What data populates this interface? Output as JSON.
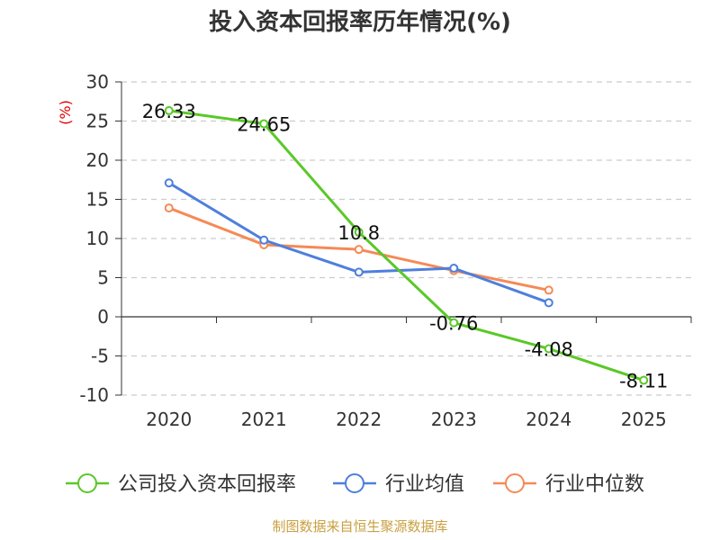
{
  "chart_data": {
    "type": "line",
    "title": "投入资本回报率历年情况(%)",
    "ylabel": "(%)",
    "categories": [
      "2020",
      "2021",
      "2022",
      "2023",
      "2024",
      "2025"
    ],
    "ylim": [
      -10,
      30
    ],
    "yticks": [
      30,
      25,
      20,
      15,
      10,
      5,
      0,
      -5,
      -10
    ],
    "grid": true,
    "legend_position": "bottom",
    "series": [
      {
        "name": "公司投入资本回报率",
        "color": "#5ac828",
        "values": [
          26.33,
          24.65,
          10.8,
          -0.76,
          -4.08,
          -8.11
        ],
        "labels": [
          "26.33",
          "24.65",
          "10.8",
          "-0.76",
          "-4.08",
          "-8.11"
        ]
      },
      {
        "name": "行业均值",
        "color": "#4e7fdc",
        "values": [
          17.1,
          9.8,
          5.7,
          6.2,
          1.8,
          null
        ]
      },
      {
        "name": "行业中位数",
        "color": "#f58a55",
        "values": [
          13.9,
          9.2,
          8.6,
          5.9,
          3.4,
          null
        ]
      }
    ],
    "source": "制图数据来自恒生聚源数据库"
  }
}
